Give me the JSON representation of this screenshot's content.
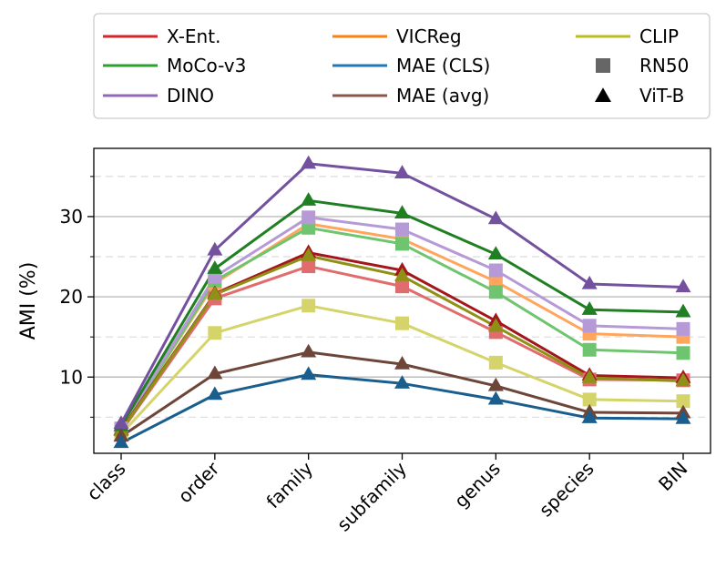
{
  "chart_data": {
    "type": "line",
    "xlabel": "",
    "ylabel": "AMI (%)",
    "categories": [
      "class",
      "order",
      "family",
      "subfamily",
      "genus",
      "species",
      "BIN"
    ],
    "ylim": [
      0.5,
      38.5
    ],
    "yticks": [
      10,
      20,
      30
    ],
    "grid": {
      "major": "solid",
      "minor": "dashed",
      "minor_ticks": [
        5,
        15,
        25,
        35
      ]
    },
    "legend": {
      "placement": "top",
      "entries": [
        {
          "label": "X-Ent.",
          "kind": "line",
          "color": "#d62728"
        },
        {
          "label": "VICReg",
          "kind": "line",
          "color": "#ff7f0e"
        },
        {
          "label": "CLIP",
          "kind": "line",
          "color": "#bcbd22"
        },
        {
          "label": "MoCo-v3",
          "kind": "line",
          "color": "#2ca02c"
        },
        {
          "label": "MAE (CLS)",
          "kind": "line",
          "color": "#1f77b4"
        },
        {
          "label": "RN50",
          "kind": "square",
          "color": "#666666"
        },
        {
          "label": "DINO",
          "kind": "line",
          "color": "#9467bd"
        },
        {
          "label": "MAE (avg)",
          "kind": "line",
          "color": "#8c564b"
        },
        {
          "label": "ViT-B",
          "kind": "triangle",
          "color": "#000000"
        }
      ]
    },
    "series": [
      {
        "model": "X-Ent.",
        "arch": "RN50",
        "color": "#e06c6d",
        "marker": "square",
        "values": [
          3.2,
          19.8,
          23.8,
          21.3,
          15.6,
          9.7,
          9.6
        ]
      },
      {
        "model": "VICReg",
        "arch": "RN50",
        "color": "#ffa55c",
        "marker": "square",
        "values": [
          3.5,
          21.7,
          29.1,
          27.2,
          21.9,
          15.4,
          15.0
        ]
      },
      {
        "model": "CLIP",
        "arch": "RN50",
        "color": "#d4d46a",
        "marker": "square",
        "values": [
          2.9,
          15.5,
          18.9,
          16.7,
          11.8,
          7.2,
          7.0
        ]
      },
      {
        "model": "MoCo-v3",
        "arch": "RN50",
        "color": "#6fc56f",
        "marker": "square",
        "values": [
          3.4,
          22.0,
          28.6,
          26.6,
          20.6,
          13.4,
          13.0
        ]
      },
      {
        "model": "DINO",
        "arch": "RN50",
        "color": "#b69ad8",
        "marker": "square",
        "values": [
          3.6,
          22.5,
          29.9,
          28.4,
          23.3,
          16.4,
          16.0
        ]
      },
      {
        "model": "X-Ent.",
        "arch": "ViT-B",
        "color": "#a3171c",
        "marker": "triangle",
        "values": [
          3.4,
          20.4,
          25.5,
          23.3,
          17.0,
          10.2,
          9.9
        ]
      },
      {
        "model": "CLIP",
        "arch": "ViT-B",
        "color": "#8f9116",
        "marker": "triangle",
        "values": [
          3.3,
          20.3,
          25.1,
          22.6,
          16.3,
          9.9,
          9.5
        ]
      },
      {
        "model": "MoCo-v3",
        "arch": "ViT-B",
        "color": "#1f7f22",
        "marker": "triangle",
        "values": [
          3.9,
          23.5,
          32.0,
          30.4,
          25.3,
          18.4,
          18.1
        ]
      },
      {
        "model": "DINO",
        "arch": "ViT-B",
        "color": "#74519f",
        "marker": "triangle",
        "values": [
          4.2,
          25.8,
          36.6,
          35.4,
          29.7,
          21.6,
          21.2
        ]
      },
      {
        "model": "MAE (avg)",
        "arch": "ViT-B",
        "color": "#6e4539",
        "marker": "triangle",
        "values": [
          2.6,
          10.4,
          13.1,
          11.6,
          8.9,
          5.6,
          5.5
        ]
      },
      {
        "model": "MAE (CLS)",
        "arch": "ViT-B",
        "color": "#1a5e8e",
        "marker": "triangle",
        "values": [
          1.8,
          7.8,
          10.3,
          9.2,
          7.2,
          4.9,
          4.8
        ]
      }
    ]
  }
}
